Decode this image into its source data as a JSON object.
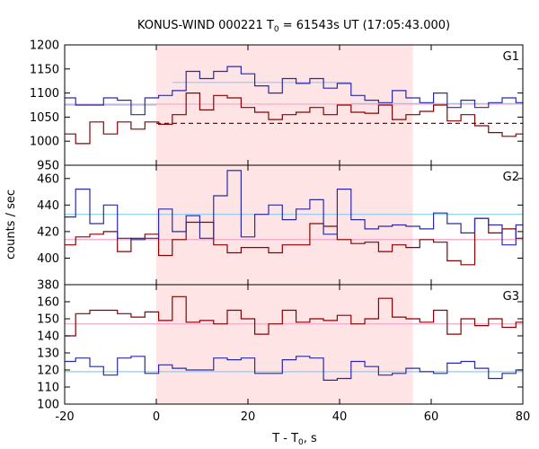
{
  "chart_data": {
    "type": "line",
    "title": "KONUS-WIND 000221 T",
    "title_sub": "0",
    "title_rest": " = 61543s UT (17:05:43.000)",
    "xlabel_main": "T - T",
    "xlabel_sub": "0",
    "xlabel_rest": ", s",
    "ylabel": "counts / sec",
    "xlim": [
      -20,
      80
    ],
    "x_ticks": [
      "-20",
      "0",
      "20",
      "40",
      "60",
      "80"
    ],
    "x_tick_values": [
      -20,
      0,
      20,
      40,
      60,
      80
    ],
    "shaded_interval": [
      0,
      56
    ],
    "colors": {
      "series_dark_red": "#8b0000",
      "series_blue": "#2a2aa8",
      "bg_light_blue": "#87cefa",
      "bg_pink": "#f4a4c8",
      "shade": "#ffe4e6"
    },
    "panels": [
      {
        "label": "G1",
        "ylim": [
          950,
          1200
        ],
        "y_ticks": [
          "950",
          "1000",
          "1050",
          "1100",
          "1150",
          "1200"
        ],
        "y_tick_values": [
          950,
          1000,
          1050,
          1100,
          1150,
          1200
        ],
        "x_edges": [
          -20,
          -17.6,
          -14.5,
          -11.5,
          -8.5,
          -5.5,
          -2.5,
          0.5,
          3.5,
          6.5,
          9.5,
          12.5,
          15.5,
          18.5,
          21.5,
          24.5,
          27.5,
          30.5,
          33.5,
          36.5,
          39.5,
          42.5,
          45.5,
          48.5,
          51.5,
          54.5,
          57.5,
          60.5,
          63.5,
          66.5,
          69.5,
          72.5,
          75.5,
          78.5,
          80
        ],
        "series": [
          {
            "color_key": "series_dark_red",
            "values": [
              1015,
              995,
              1040,
              1015,
              1040,
              1025,
              1040,
              1035,
              1055,
              1100,
              1065,
              1095,
              1090,
              1070,
              1060,
              1045,
              1055,
              1060,
              1070,
              1055,
              1075,
              1060,
              1058,
              1075,
              1045,
              1055,
              1062,
              1075,
              1042,
              1055,
              1032,
              1018,
              1010,
              1015
            ]
          },
          {
            "color_key": "series_blue",
            "values": [
              1090,
              1075,
              1075,
              1090,
              1085,
              1055,
              1090,
              1095,
              1105,
              1145,
              1130,
              1145,
              1155,
              1140,
              1115,
              1100,
              1130,
              1120,
              1130,
              1110,
              1120,
              1095,
              1085,
              1080,
              1105,
              1090,
              1080,
              1100,
              1070,
              1085,
              1070,
              1080,
              1090,
              1080
            ]
          }
        ],
        "bg_levels": [
          {
            "color_key": "bg_light_blue",
            "segments": [
              [
                -20,
                0,
                1075
              ],
              [
                3.5,
                42.5,
                1122
              ],
              [
                42.5,
                80,
                1078
              ]
            ]
          },
          {
            "color_key": "series_dark_red",
            "dashed": true,
            "segments": [
              [
                0,
                80,
                1037
              ]
            ]
          },
          {
            "color_key": "bg_pink",
            "segments": [
              [
                -20,
                80,
                1077
              ]
            ]
          }
        ]
      },
      {
        "label": "G2",
        "ylim": [
          380,
          470
        ],
        "y_ticks": [
          "380",
          "400",
          "420",
          "440",
          "460"
        ],
        "y_tick_values": [
          380,
          400,
          420,
          440,
          460
        ],
        "x_edges": [
          -20,
          -17.6,
          -14.5,
          -11.5,
          -8.5,
          -5.5,
          -2.5,
          0.5,
          3.5,
          6.5,
          9.5,
          12.5,
          15.5,
          18.5,
          21.5,
          24.5,
          27.5,
          30.5,
          33.5,
          36.5,
          39.5,
          42.5,
          45.5,
          48.5,
          51.5,
          54.5,
          57.5,
          60.5,
          63.5,
          66.5,
          69.5,
          72.5,
          75.5,
          78.5,
          80
        ],
        "series": [
          {
            "color_key": "series_dark_red",
            "values": [
              410,
              416,
              418,
              420,
              405,
              415,
              418,
              402,
              414,
              427,
              427,
              410,
              404,
              408,
              408,
              404,
              410,
              410,
              426,
              424,
              414,
              411,
              412,
              405,
              410,
              408,
              414,
              412,
              398,
              395,
              430,
              419,
              422,
              415
            ]
          },
          {
            "color_key": "series_blue",
            "values": [
              431,
              452,
              426,
              440,
              415,
              414,
              415,
              437,
              420,
              432,
              415,
              447,
              466,
              416,
              433,
              440,
              429,
              437,
              444,
              418,
              452,
              429,
              422,
              424,
              425,
              424,
              422,
              434,
              426,
              419,
              430,
              425,
              410,
              425
            ]
          }
        ],
        "bg_levels": [
          {
            "color_key": "bg_light_blue",
            "segments": [
              [
                -20,
                80,
                433
              ]
            ]
          },
          {
            "color_key": "bg_pink",
            "segments": [
              [
                -20,
                80,
                414
              ]
            ]
          }
        ]
      },
      {
        "label": "G3",
        "ylim": [
          100,
          170
        ],
        "y_ticks": [
          "100",
          "110",
          "120",
          "130",
          "140",
          "150",
          "160"
        ],
        "y_tick_values": [
          100,
          110,
          120,
          130,
          140,
          150,
          160
        ],
        "x_edges": [
          -20,
          -17.6,
          -14.5,
          -11.5,
          -8.5,
          -5.5,
          -2.5,
          0.5,
          3.5,
          6.5,
          9.5,
          12.5,
          15.5,
          18.5,
          21.5,
          24.5,
          27.5,
          30.5,
          33.5,
          36.5,
          39.5,
          42.5,
          45.5,
          48.5,
          51.5,
          54.5,
          57.5,
          60.5,
          63.5,
          66.5,
          69.5,
          72.5,
          75.5,
          78.5,
          80
        ],
        "series": [
          {
            "color_key": "series_dark_red",
            "values": [
              140,
              153,
              155,
              155,
              153,
              151,
              154,
              149,
              163,
              148,
              149,
              147,
              155,
              150,
              141,
              147,
              155,
              148,
              150,
              149,
              152,
              147,
              150,
              162,
              151,
              150,
              148,
              155,
              141,
              150,
              146,
              150,
              145,
              148
            ]
          },
          {
            "color_key": "series_blue",
            "values": [
              125,
              127,
              122,
              117,
              127,
              128,
              118,
              123,
              121,
              120,
              120,
              127,
              126,
              127,
              118,
              118,
              126,
              128,
              127,
              114,
              115,
              125,
              122,
              117,
              118,
              121,
              119,
              118,
              124,
              125,
              121,
              115,
              118,
              120
            ]
          }
        ],
        "bg_levels": [
          {
            "color_key": "bg_light_blue",
            "segments": [
              [
                -20,
                80,
                119
              ]
            ]
          },
          {
            "color_key": "bg_pink",
            "segments": [
              [
                -20,
                80,
                147
              ]
            ]
          }
        ]
      }
    ]
  }
}
